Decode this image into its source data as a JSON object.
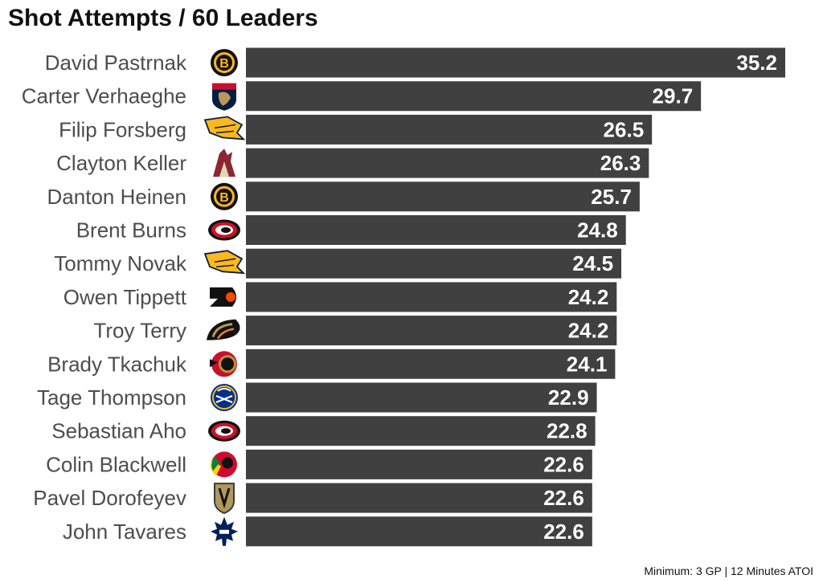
{
  "chart_data": {
    "type": "bar",
    "orientation": "horizontal",
    "title": "Shot Attempts / 60 Leaders",
    "caption": "Minimum: 3 GP | 12 Minutes ATOI",
    "xlim": [
      0,
      35.2
    ],
    "grid": false,
    "bar_color": "#404040",
    "value_label_color": "#ffffff",
    "categories": [
      "David Pastrnak",
      "Carter Verhaeghe",
      "Filip Forsberg",
      "Clayton Keller",
      "Danton Heinen",
      "Brent Burns",
      "Tommy Novak",
      "Owen Tippett",
      "Troy Terry",
      "Brady Tkachuk",
      "Tage Thompson",
      "Sebastian Aho",
      "Colin Blackwell",
      "Pavel Dorofeyev",
      "John Tavares"
    ],
    "values": [
      35.2,
      29.7,
      26.5,
      26.3,
      25.7,
      24.8,
      24.5,
      24.2,
      24.2,
      24.1,
      22.9,
      22.8,
      22.6,
      22.6,
      22.6
    ],
    "value_labels": [
      "35.2",
      "29.7",
      "26.5",
      "26.3",
      "25.7",
      "24.8",
      "24.5",
      "24.2",
      "24.2",
      "24.1",
      "22.9",
      "22.8",
      "22.6",
      "22.6",
      "22.6"
    ],
    "team_logos": [
      "bruins-logo",
      "panthers-logo",
      "predators-logo",
      "coyotes-logo",
      "bruins-logo",
      "hurricanes-logo",
      "predators-logo",
      "flyers-logo",
      "ducks-logo",
      "senators-logo",
      "sabres-logo",
      "hurricanes-logo",
      "blackhawks-logo",
      "golden-knights-logo",
      "maple-leafs-logo"
    ]
  }
}
